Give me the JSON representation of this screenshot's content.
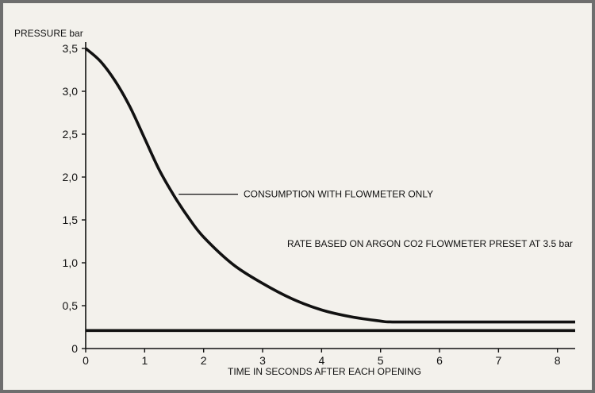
{
  "chart_data": {
    "type": "line",
    "ylabel": "PRESSURE bar",
    "xlabel": "TIME IN SECONDS AFTER EACH OPENING",
    "xlim": [
      0,
      8.3
    ],
    "ylim": [
      0,
      3.5
    ],
    "x_ticks": [
      {
        "value": 0,
        "label": "0"
      },
      {
        "value": 1,
        "label": "1"
      },
      {
        "value": 2,
        "label": "2"
      },
      {
        "value": 3,
        "label": "3"
      },
      {
        "value": 4,
        "label": "4"
      },
      {
        "value": 5,
        "label": "5"
      },
      {
        "value": 6,
        "label": "6"
      },
      {
        "value": 7,
        "label": "7"
      },
      {
        "value": 8,
        "label": "8"
      }
    ],
    "y_ticks": [
      {
        "value": 0,
        "label": "0"
      },
      {
        "value": 0.5,
        "label": "0,5"
      },
      {
        "value": 1.0,
        "label": "1,0"
      },
      {
        "value": 1.5,
        "label": "1,5"
      },
      {
        "value": 2.0,
        "label": "2,0"
      },
      {
        "value": 2.5,
        "label": "2,5"
      },
      {
        "value": 3.0,
        "label": "3,0"
      },
      {
        "value": 3.5,
        "label": "3,5"
      }
    ],
    "grid": false,
    "series": [
      {
        "name": "CONSUMPTION WITH FLOWMETER ONLY",
        "x": [
          0,
          0.25,
          0.5,
          0.75,
          1.0,
          1.25,
          1.5,
          1.75,
          2.0,
          2.5,
          3.0,
          3.5,
          4.0,
          4.5,
          5.0,
          5.2,
          6.0,
          7.0,
          8.0,
          8.3
        ],
        "y": [
          3.5,
          3.35,
          3.12,
          2.82,
          2.45,
          2.08,
          1.78,
          1.52,
          1.3,
          0.98,
          0.76,
          0.58,
          0.45,
          0.37,
          0.32,
          0.31,
          0.31,
          0.31,
          0.31,
          0.31
        ]
      },
      {
        "name": "",
        "x": [
          0,
          8.3
        ],
        "y": [
          0.21,
          0.21
        ]
      }
    ],
    "annotations": [
      {
        "text": "CONSUMPTION WITH FLOWMETER ONLY",
        "x": 1.55,
        "y": 1.8
      },
      {
        "text": "RATE BASED ON ARGON CO2 FLOWMETER PRESET AT 3.5 bar",
        "x": 3.4,
        "y": 1.22
      }
    ]
  }
}
